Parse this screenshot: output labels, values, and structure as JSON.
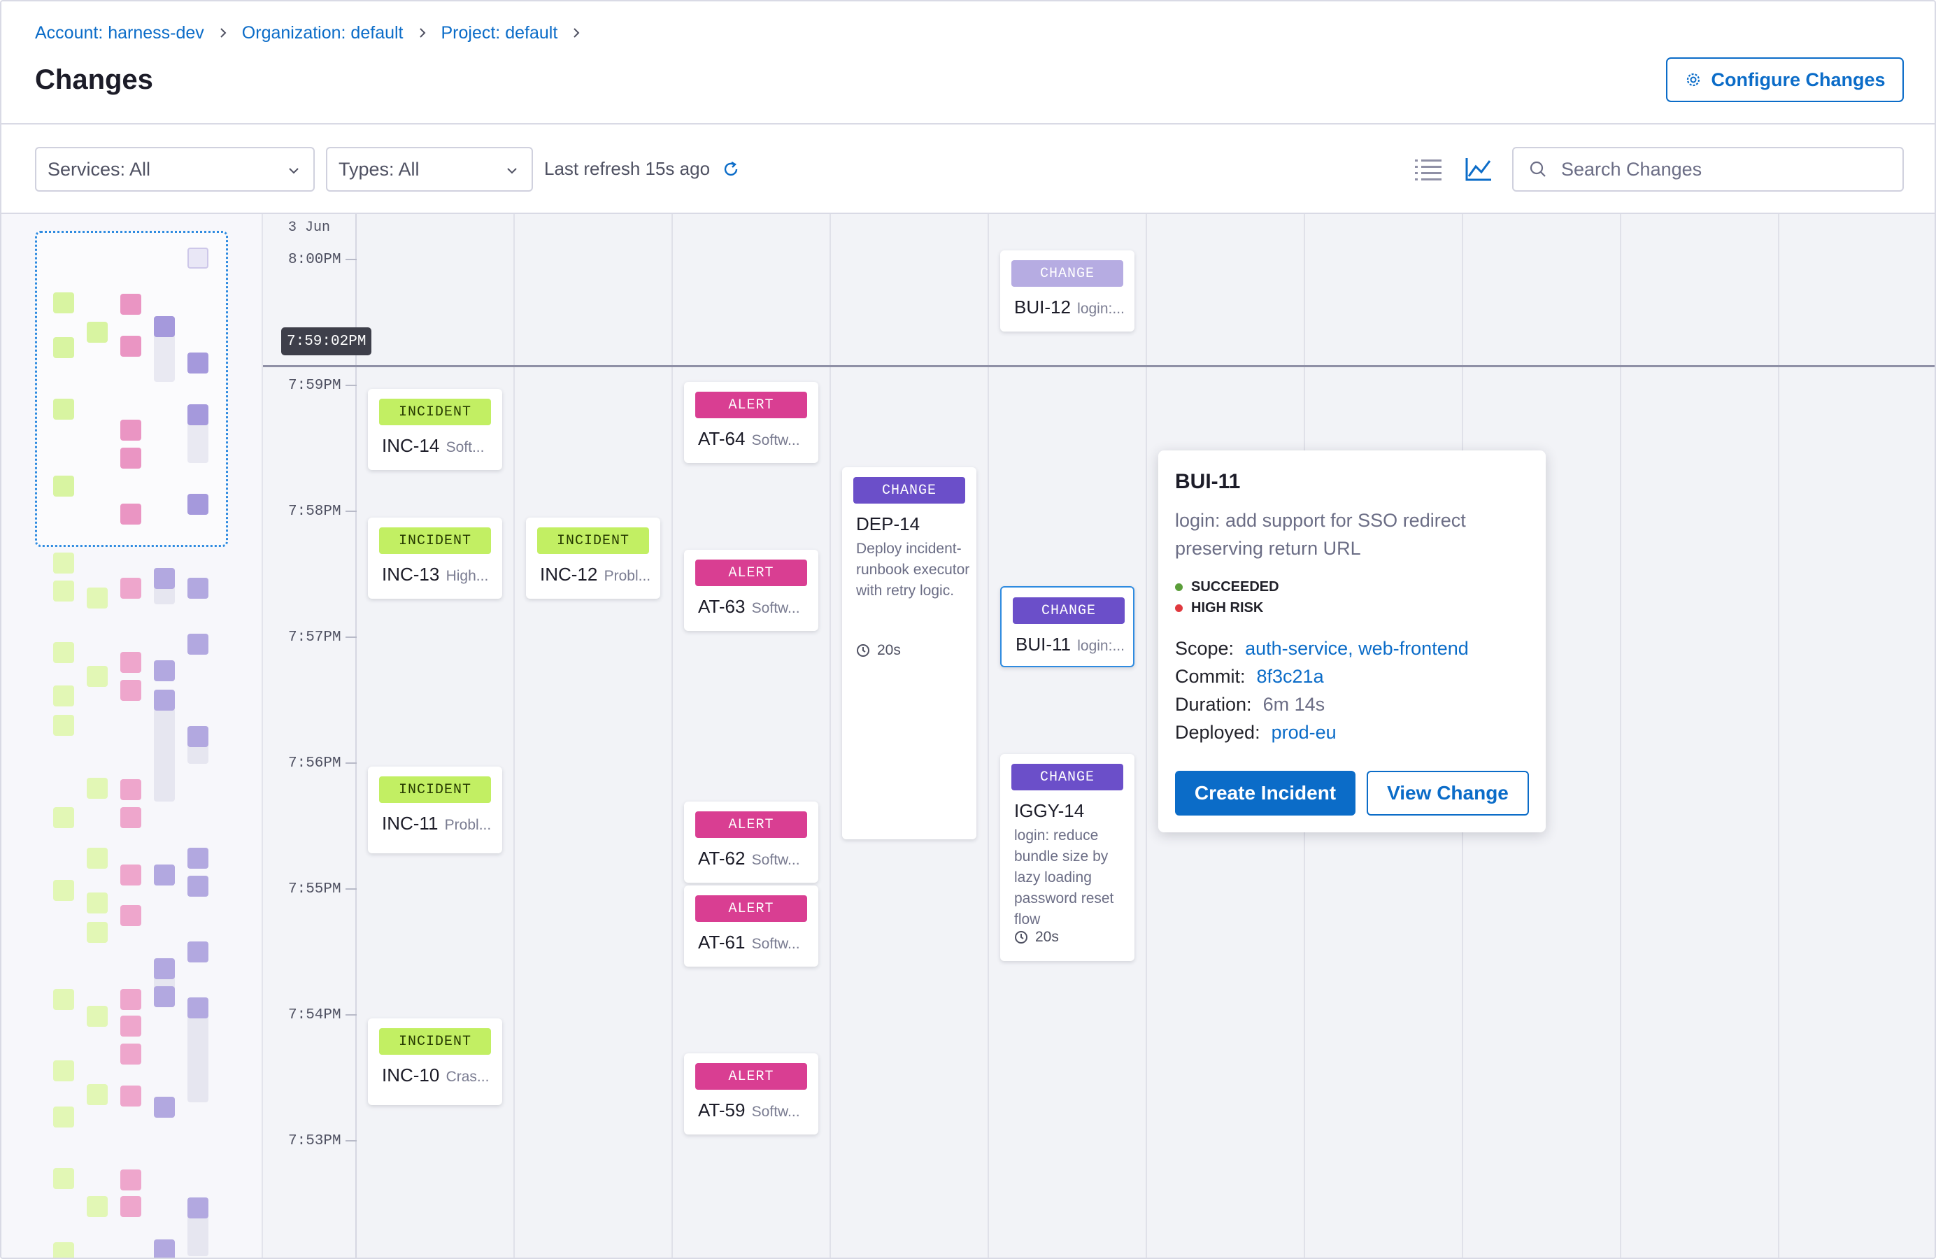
{
  "breadcrumbs": [
    "Account: harness-dev",
    "Organization: default",
    "Project: default"
  ],
  "page_title": "Changes",
  "configure_button": {
    "label": "Configure Changes",
    "icon": "gear-icon"
  },
  "filters": {
    "services": "Services: All",
    "types": "Types: All",
    "last_refresh": "Last refresh 15s ago"
  },
  "view_toggle": {
    "list_icon": "list-icon",
    "chart_icon": "line-chart-icon",
    "active": "chart"
  },
  "search": {
    "placeholder": "Search Changes",
    "value": ""
  },
  "timeline": {
    "date": "3 Jun",
    "ticks": [
      "8:00PM",
      "7:59PM",
      "7:58PM",
      "7:57PM",
      "7:56PM",
      "7:55PM",
      "7:54PM",
      "7:53PM"
    ],
    "now_marker": "7:59:02PM"
  },
  "cards": [
    {
      "type": "INCIDENT",
      "id": "INC-14",
      "sub": "Soft..."
    },
    {
      "type": "INCIDENT",
      "id": "INC-13",
      "sub": "High..."
    },
    {
      "type": "INCIDENT",
      "id": "INC-12",
      "sub": "Probl..."
    },
    {
      "type": "INCIDENT",
      "id": "INC-11",
      "sub": "Probl..."
    },
    {
      "type": "INCIDENT",
      "id": "INC-10",
      "sub": "Cras..."
    },
    {
      "type": "ALERT",
      "id": "AT-64",
      "sub": "Softw..."
    },
    {
      "type": "ALERT",
      "id": "AT-63",
      "sub": "Softw..."
    },
    {
      "type": "ALERT",
      "id": "AT-62",
      "sub": "Softw..."
    },
    {
      "type": "ALERT",
      "id": "AT-61",
      "sub": "Softw..."
    },
    {
      "type": "ALERT",
      "id": "AT-59",
      "sub": "Softw..."
    },
    {
      "type": "CHANGE",
      "id": "DEP-14",
      "desc": "Deploy incident-runbook executor with retry logic.",
      "duration": "20s"
    },
    {
      "type": "CHANGE",
      "id": "BUI-12",
      "sub": "login:..."
    },
    {
      "type": "CHANGE",
      "id": "BUI-11",
      "sub": "login:..."
    },
    {
      "type": "CHANGE",
      "id": "IGGY-14",
      "desc": "login: reduce bundle size by lazy loading password reset flow",
      "duration": "20s"
    }
  ],
  "popover": {
    "id": "BUI-11",
    "description": "login: add support for SSO redirect preserving return URL",
    "status": "SUCCEEDED",
    "risk": "HIGH RISK",
    "scope_label": "Scope:",
    "scope_values": [
      "auth-service",
      "web-frontend"
    ],
    "commit_label": "Commit:",
    "commit": "8f3c21a",
    "duration_label": "Duration:",
    "duration": "6m 14s",
    "deployed_label": "Deployed:",
    "deployed": "prod-eu",
    "primary_button": "Create Incident",
    "secondary_button": "View Change"
  },
  "colors": {
    "accent": "#0b6cc8",
    "incident": "#c2ef63",
    "alert": "#d93e92",
    "change": "#6b4fc9",
    "succeeded": "#5b9e3a",
    "high_risk": "#e0393e"
  }
}
